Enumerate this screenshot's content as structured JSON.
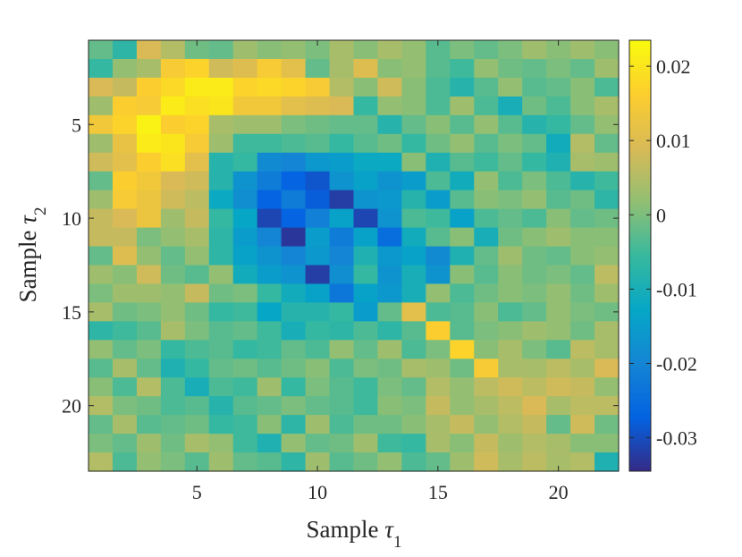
{
  "chart_data": {
    "type": "heatmap",
    "xlabel": {
      "text": "Sample ",
      "symbol": "τ",
      "subscript": "1"
    },
    "ylabel": {
      "text": "Sample ",
      "symbol": "τ",
      "subscript": "2"
    },
    "xlim": [
      0.5,
      22.5
    ],
    "ylim": [
      0.5,
      22.5
    ],
    "y_direction": "reversed",
    "x_ticks": [
      5,
      10,
      15,
      20
    ],
    "y_ticks": [
      5,
      10,
      15,
      20
    ],
    "x_tick_labels": [
      "5",
      "10",
      "15",
      "20"
    ],
    "y_tick_labels": [
      "5",
      "10",
      "15",
      "20"
    ],
    "colorbar": {
      "range": [
        -0.0345,
        0.0235
      ],
      "ticks": [
        0.02,
        0.01,
        0,
        -0.01,
        -0.02,
        -0.03
      ],
      "tick_labels": [
        "0.02",
        "0.01",
        "0",
        "-0.01",
        "-0.02",
        "-0.03"
      ],
      "colormap": "parula"
    },
    "grid": false,
    "values": [
      [
        -0.002,
        -0.007,
        0.009,
        0.005,
        -0.001,
        -0.002,
        0.003,
        0.001,
        0.002,
        0.0,
        0.004,
        0.001,
        0.004,
        0.002,
        -0.003,
        0.0,
        -0.002,
        0.0,
        0.003,
        0.001,
        0.003,
        0.001
      ],
      [
        -0.006,
        0.002,
        0.004,
        0.015,
        0.017,
        0.008,
        0.01,
        0.015,
        0.011,
        -0.002,
        0.004,
        0.01,
        0.001,
        0.002,
        -0.003,
        -0.005,
        0.002,
        -0.001,
        -0.002,
        0.0,
        -0.002,
        0.003
      ],
      [
        0.009,
        0.007,
        0.016,
        0.018,
        0.021,
        0.021,
        0.017,
        0.018,
        0.017,
        0.015,
        0.005,
        0.001,
        0.008,
        0.001,
        -0.004,
        -0.008,
        -0.003,
        0.002,
        -0.003,
        -0.002,
        0.001,
        -0.004
      ],
      [
        0.003,
        0.016,
        0.015,
        0.021,
        0.019,
        0.02,
        0.014,
        0.014,
        0.011,
        0.01,
        0.009,
        -0.006,
        0.002,
        0.001,
        -0.004,
        0.003,
        -0.004,
        -0.01,
        -0.001,
        -0.004,
        0.001,
        0.004
      ],
      [
        0.014,
        0.017,
        0.022,
        0.016,
        0.017,
        0.004,
        0.003,
        0.003,
        0.0,
        -0.001,
        -0.002,
        -0.002,
        -0.008,
        -0.002,
        0.001,
        -0.003,
        0.002,
        -0.003,
        -0.008,
        -0.006,
        -0.002,
        0.002
      ],
      [
        0.003,
        0.012,
        0.021,
        0.02,
        0.015,
        0.003,
        -0.005,
        -0.005,
        -0.004,
        -0.003,
        -0.006,
        -0.003,
        -0.001,
        -0.006,
        -0.001,
        0.002,
        -0.003,
        0.0,
        -0.002,
        -0.011,
        0.005,
        -0.002
      ],
      [
        0.008,
        0.011,
        0.016,
        0.019,
        0.011,
        -0.008,
        -0.006,
        -0.019,
        -0.02,
        -0.016,
        -0.015,
        -0.012,
        -0.012,
        0.001,
        -0.009,
        -0.003,
        -0.005,
        -0.002,
        -0.006,
        -0.009,
        0.004,
        0.003
      ],
      [
        -0.002,
        0.016,
        0.014,
        0.009,
        0.008,
        -0.008,
        -0.017,
        -0.022,
        -0.027,
        -0.029,
        -0.017,
        -0.014,
        -0.017,
        -0.015,
        -0.004,
        -0.011,
        0.002,
        -0.004,
        0.0,
        -0.004,
        -0.008,
        -0.005
      ],
      [
        0.003,
        0.015,
        0.013,
        0.008,
        0.006,
        -0.012,
        -0.018,
        -0.027,
        -0.022,
        -0.028,
        -0.032,
        -0.017,
        -0.016,
        -0.008,
        -0.015,
        -0.003,
        0.001,
        0.0,
        0.002,
        -0.003,
        -0.001,
        -0.007
      ],
      [
        0.007,
        0.009,
        0.013,
        0.003,
        0.007,
        -0.006,
        -0.013,
        -0.031,
        -0.027,
        -0.021,
        -0.014,
        -0.031,
        -0.017,
        -0.004,
        -0.005,
        -0.014,
        -0.004,
        -0.002,
        -0.004,
        0.001,
        -0.002,
        -0.001
      ],
      [
        0.007,
        0.007,
        0.0,
        0.002,
        0.004,
        -0.007,
        -0.015,
        -0.02,
        -0.033,
        -0.015,
        -0.022,
        -0.014,
        -0.025,
        -0.011,
        -0.003,
        0.001,
        -0.01,
        -0.001,
        0.001,
        0.003,
        0.001,
        0.001
      ],
      [
        -0.002,
        0.01,
        0.002,
        -0.002,
        0.002,
        -0.007,
        -0.014,
        -0.017,
        -0.02,
        -0.016,
        -0.02,
        -0.009,
        -0.016,
        -0.014,
        -0.019,
        -0.009,
        -0.002,
        0.003,
        -0.001,
        -0.002,
        0.001,
        0.002
      ],
      [
        0.003,
        0.001,
        0.008,
        -0.001,
        -0.003,
        0.002,
        -0.011,
        -0.015,
        -0.017,
        -0.032,
        -0.018,
        -0.006,
        -0.017,
        -0.01,
        -0.017,
        0.001,
        -0.003,
        0.001,
        -0.001,
        0.0,
        -0.002,
        0.006
      ],
      [
        0.0,
        0.003,
        0.003,
        0.002,
        0.007,
        -0.001,
        0.0,
        -0.006,
        -0.011,
        -0.014,
        -0.023,
        -0.014,
        -0.016,
        -0.01,
        0.002,
        -0.004,
        -0.001,
        0.001,
        0.0,
        0.002,
        -0.001,
        0.003
      ],
      [
        0.004,
        -0.001,
        0.0,
        0.002,
        -0.001,
        -0.006,
        -0.005,
        -0.013,
        -0.008,
        -0.008,
        -0.006,
        -0.015,
        -0.002,
        0.011,
        -0.004,
        -0.003,
        0.001,
        -0.004,
        -0.002,
        0.002,
        0.0,
        -0.001
      ],
      [
        -0.007,
        -0.005,
        -0.003,
        0.004,
        0.0,
        -0.003,
        -0.002,
        -0.005,
        -0.01,
        -0.006,
        -0.007,
        -0.004,
        -0.007,
        -0.003,
        0.016,
        -0.003,
        0.0,
        0.001,
        0.003,
        0.002,
        -0.001,
        0.004
      ],
      [
        0.002,
        -0.002,
        0.0,
        -0.006,
        -0.004,
        -0.003,
        -0.006,
        -0.005,
        -0.002,
        -0.004,
        0.002,
        -0.002,
        0.003,
        -0.004,
        0.0,
        0.017,
        0.001,
        0.004,
        0.0,
        -0.003,
        0.006,
        0.004
      ],
      [
        -0.003,
        0.004,
        -0.002,
        -0.009,
        -0.006,
        -0.002,
        -0.001,
        -0.003,
        -0.001,
        0.001,
        -0.004,
        0.0,
        -0.001,
        0.004,
        0.003,
        -0.001,
        0.015,
        0.004,
        0.004,
        0.006,
        0.004,
        0.009
      ],
      [
        0.001,
        -0.004,
        0.005,
        -0.004,
        -0.01,
        -0.004,
        -0.005,
        0.003,
        -0.006,
        0.0,
        -0.003,
        -0.005,
        0.0,
        -0.002,
        0.005,
        0.002,
        0.006,
        0.008,
        0.006,
        0.008,
        0.007,
        0.002
      ],
      [
        0.005,
        0.0,
        -0.001,
        -0.004,
        -0.003,
        -0.008,
        -0.003,
        -0.002,
        0.0,
        -0.002,
        -0.003,
        -0.005,
        0.001,
        0.0,
        0.007,
        0.002,
        0.004,
        0.006,
        0.009,
        0.004,
        0.006,
        0.006
      ],
      [
        -0.002,
        0.004,
        -0.003,
        -0.002,
        -0.001,
        -0.006,
        -0.005,
        0.001,
        -0.007,
        0.003,
        -0.004,
        -0.001,
        -0.001,
        0.001,
        0.004,
        0.007,
        0.002,
        0.005,
        0.007,
        -0.002,
        0.008,
        -0.001
      ],
      [
        0.0,
        -0.002,
        0.003,
        -0.001,
        0.004,
        0.002,
        -0.005,
        -0.009,
        0.002,
        -0.002,
        -0.001,
        0.003,
        -0.005,
        -0.006,
        0.004,
        0.001,
        0.007,
        0.003,
        0.005,
        0.004,
        0.001,
        0.001
      ],
      [
        0.005,
        -0.004,
        0.002,
        0.0,
        -0.003,
        0.003,
        -0.002,
        -0.003,
        -0.007,
        0.003,
        -0.003,
        -0.001,
        0.002,
        -0.004,
        -0.002,
        0.003,
        0.008,
        0.004,
        0.006,
        0.004,
        0.005,
        -0.009
      ]
    ]
  }
}
